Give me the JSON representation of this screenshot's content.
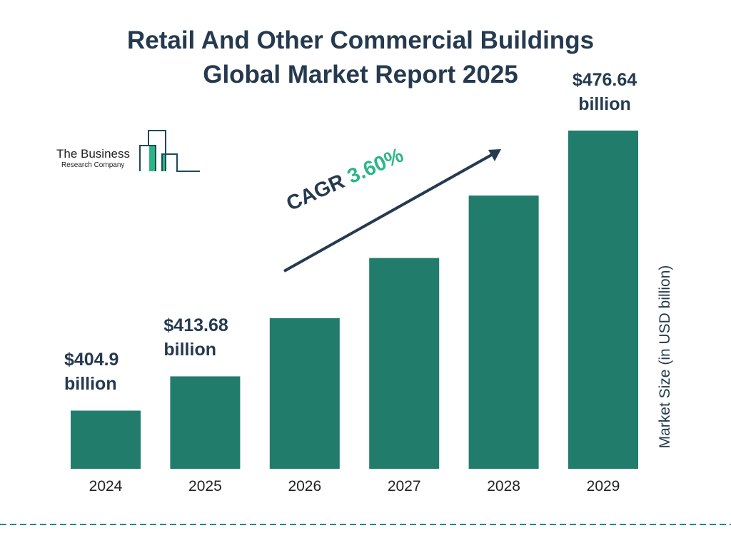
{
  "chart_data": {
    "type": "bar",
    "title": "Retail And Other Commercial Buildings Global Market Report 2025",
    "title_lines": [
      "Retail And Other Commercial Buildings",
      "Global Market Report 2025"
    ],
    "categories": [
      "2024",
      "2025",
      "2026",
      "2027",
      "2028",
      "2029"
    ],
    "values": [
      404.9,
      413.68,
      428.6,
      444.0,
      460.0,
      476.64
    ],
    "data_labels": [
      {
        "index": 0,
        "value": "$404.9",
        "unit": "billion"
      },
      {
        "index": 1,
        "value": "$413.68",
        "unit": "billion"
      },
      {
        "index": 5,
        "value": "$476.64",
        "unit": "billion"
      }
    ],
    "ylabel": "Market Size (in USD billion)",
    "xlabel": "",
    "ylim": [
      390,
      480
    ],
    "grid": false,
    "bar_color": "#217c6c",
    "annotation": {
      "label": "CAGR",
      "value": "3.60%",
      "color": "#2db788"
    }
  },
  "logo": {
    "line1": "The Business",
    "line2": "Research Company",
    "accent": "#2bb585",
    "outline": "#1e4a5a"
  },
  "divider_color": "#1f8a8a"
}
